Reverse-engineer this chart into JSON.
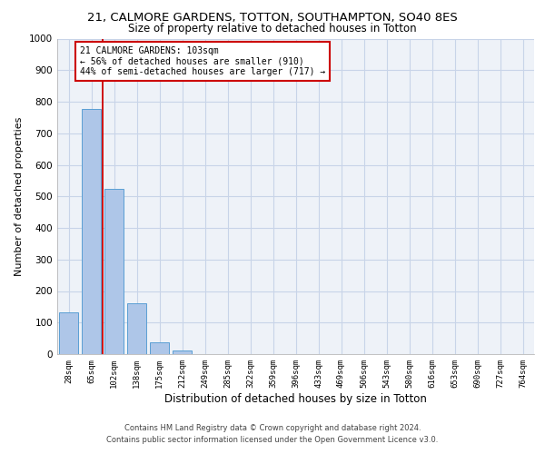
{
  "title1": "21, CALMORE GARDENS, TOTTON, SOUTHAMPTON, SO40 8ES",
  "title2": "Size of property relative to detached houses in Totton",
  "xlabel": "Distribution of detached houses by size in Totton",
  "ylabel": "Number of detached properties",
  "bar_labels": [
    "28sqm",
    "65sqm",
    "102sqm",
    "138sqm",
    "175sqm",
    "212sqm",
    "249sqm",
    "285sqm",
    "322sqm",
    "359sqm",
    "396sqm",
    "433sqm",
    "469sqm",
    "506sqm",
    "543sqm",
    "580sqm",
    "616sqm",
    "653sqm",
    "690sqm",
    "727sqm",
    "764sqm"
  ],
  "bar_values": [
    132,
    778,
    525,
    160,
    37,
    12,
    0,
    0,
    0,
    0,
    0,
    0,
    0,
    0,
    0,
    0,
    0,
    0,
    0,
    0,
    0
  ],
  "bar_color": "#aec6e8",
  "bar_edge_color": "#5a9fd4",
  "annotation_title": "21 CALMORE GARDENS: 103sqm",
  "annotation_line1": "← 56% of detached houses are smaller (910)",
  "annotation_line2": "44% of semi-detached houses are larger (717) →",
  "vline_color": "#cc0000",
  "box_edge_color": "#cc0000",
  "ylim": [
    0,
    1000
  ],
  "yticks": [
    0,
    100,
    200,
    300,
    400,
    500,
    600,
    700,
    800,
    900,
    1000
  ],
  "footer1": "Contains HM Land Registry data © Crown copyright and database right 2024.",
  "footer2": "Contains public sector information licensed under the Open Government Licence v3.0.",
  "background_color": "#eef2f8",
  "grid_color": "#c8d4e8"
}
